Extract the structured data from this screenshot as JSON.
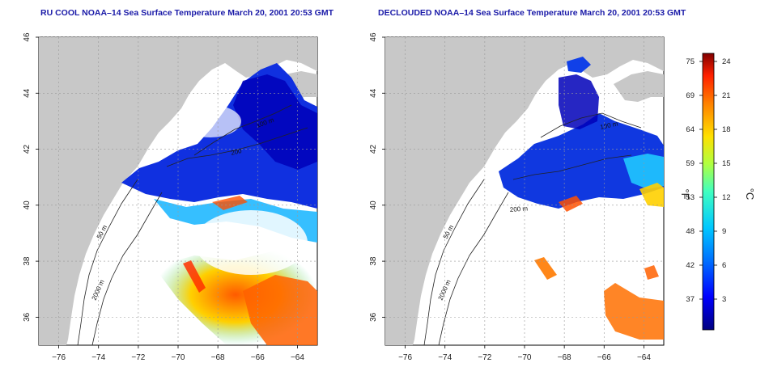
{
  "panels": [
    {
      "id": "left",
      "title": "RU COOL NOAA–14 Sea Surface Temperature March 20, 2001 20:53 GMT",
      "isobaths": [
        "50 m",
        "2000 m",
        "100 m",
        "200"
      ]
    },
    {
      "id": "right",
      "title": "DECLOUDED NOAA–14 Sea Surface Temperature March 20, 2001 20:53 GMT",
      "isobaths": [
        "50 m",
        "2000 m",
        "100 m",
        "200 m"
      ]
    }
  ],
  "axes": {
    "x_ticks": [
      "−76",
      "−74",
      "−72",
      "−70",
      "−68",
      "−66",
      "−64"
    ],
    "y_ticks": [
      "36",
      "38",
      "40",
      "42",
      "44",
      "46"
    ],
    "xlim": [
      -77,
      -63
    ],
    "ylim": [
      35,
      46
    ],
    "grid": true
  },
  "colorbar": {
    "unit_f": "°F",
    "unit_c": "°C",
    "f_ticks": [
      "75",
      "69",
      "64",
      "59",
      "53",
      "48",
      "42",
      "37"
    ],
    "c_ticks": [
      "24",
      "21",
      "18",
      "15",
      "12",
      "9",
      "6",
      "3"
    ],
    "colors": [
      "#000080",
      "#0000ff",
      "#0070ff",
      "#00c8ff",
      "#40ffc0",
      "#b0ff40",
      "#ffe000",
      "#ff8000",
      "#ff2000",
      "#800000"
    ]
  },
  "colors": {
    "land": "#c8c8c8",
    "ocean": "#ffffff",
    "title": "#1a1aa8",
    "grid": "#999999"
  }
}
